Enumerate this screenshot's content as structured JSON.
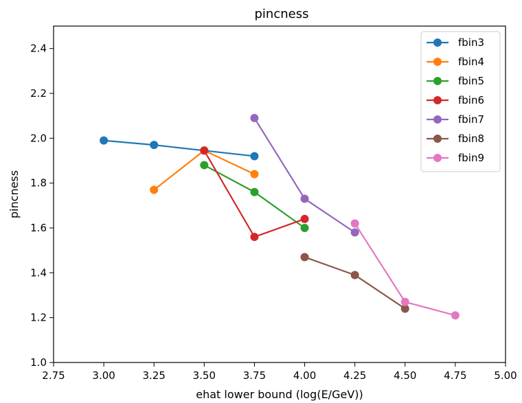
{
  "chart_data": {
    "type": "line",
    "title": "pincness",
    "xlabel": "ehat lower bound (log(E/GeV))",
    "ylabel": "pincness",
    "xlim": [
      2.75,
      5.0
    ],
    "ylim": [
      1.0,
      2.5
    ],
    "xticks": [
      "2.75",
      "3.00",
      "3.25",
      "3.50",
      "3.75",
      "4.00",
      "4.25",
      "4.50",
      "4.75",
      "5.00"
    ],
    "yticks": [
      "1.0",
      "1.2",
      "1.4",
      "1.6",
      "1.8",
      "2.0",
      "2.2",
      "2.4"
    ],
    "grid": false,
    "legend_position": "top-right",
    "series": [
      {
        "name": "fbin3",
        "color": "#1f77b4",
        "x": [
          3.0,
          3.25,
          3.5,
          3.75
        ],
        "y": [
          1.99,
          1.97,
          1.945,
          1.92
        ]
      },
      {
        "name": "fbin4",
        "color": "#ff7f0e",
        "x": [
          3.25,
          3.5,
          3.75
        ],
        "y": [
          1.77,
          1.945,
          1.84
        ]
      },
      {
        "name": "fbin5",
        "color": "#2ca02c",
        "x": [
          3.5,
          3.75,
          4.0
        ],
        "y": [
          1.88,
          1.76,
          1.6
        ]
      },
      {
        "name": "fbin6",
        "color": "#d62728",
        "x": [
          3.5,
          3.75,
          4.0
        ],
        "y": [
          1.945,
          1.56,
          1.64
        ]
      },
      {
        "name": "fbin7",
        "color": "#9467bd",
        "x": [
          3.75,
          4.0,
          4.25
        ],
        "y": [
          2.09,
          1.73,
          1.58
        ]
      },
      {
        "name": "fbin8",
        "color": "#8c564b",
        "x": [
          4.0,
          4.25,
          4.5
        ],
        "y": [
          1.47,
          1.39,
          1.24
        ]
      },
      {
        "name": "fbin9",
        "color": "#e377c2",
        "x": [
          4.25,
          4.5,
          4.75
        ],
        "y": [
          1.62,
          1.27,
          1.21
        ]
      }
    ]
  }
}
